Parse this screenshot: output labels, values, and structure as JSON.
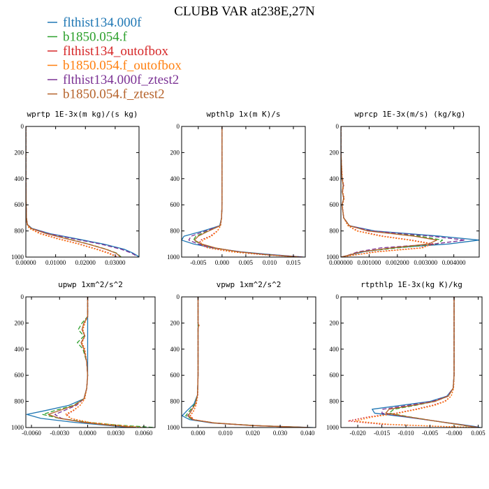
{
  "title": "CLUBB VAR at238E,27N",
  "legend": [
    {
      "label": "flthist134.000f",
      "color": "#1f77b4",
      "dash": "solid"
    },
    {
      "label": "b1850.054.f",
      "color": "#2ca02c",
      "dash": "dashed"
    },
    {
      "label": "flthist134_outofbox",
      "color": "#d62728",
      "dash": "dotted"
    },
    {
      "label": "b1850.054.f_outofbox",
      "color": "#ff7f0e",
      "dash": "dotted"
    },
    {
      "label": "flthist134.000f_ztest2",
      "color": "#7b3294",
      "dash": "dashed"
    },
    {
      "label": "b1850.054.f_ztest2",
      "color": "#b5622a",
      "dash": "solid"
    }
  ],
  "chart_data": [
    {
      "type": "line",
      "title": "wprtp  1E-3x(m kg)/(s kg)",
      "xlim": [
        0,
        0.038
      ],
      "ylim": [
        1000,
        0
      ],
      "y_inverted": true,
      "x_ticks": [
        0,
        0.01,
        0.02,
        0.03
      ],
      "x_tick_labels": [
        "0.00000",
        "0.01000",
        "0.02000",
        "0.03000"
      ],
      "y_ticks": [
        0,
        200,
        400,
        600,
        800,
        1000
      ],
      "y_tick_labels": [
        "0",
        "200",
        "400",
        "600",
        "800",
        "1000"
      ],
      "y": [
        0,
        200,
        400,
        600,
        700,
        750,
        780,
        820,
        860,
        900,
        940,
        970,
        990,
        1000
      ],
      "series": [
        {
          "name": "flthist134.000f",
          "x": [
            0,
            0,
            0,
            0.0001,
            0.0002,
            0.0005,
            0.002,
            0.008,
            0.017,
            0.026,
            0.033,
            0.036,
            0.0375,
            0.038
          ]
        },
        {
          "name": "b1850.054.f",
          "x": [
            0,
            0,
            0,
            0.0001,
            0.0002,
            0.0005,
            0.0018,
            0.007,
            0.014,
            0.021,
            0.027,
            0.0305,
            0.0315,
            0.032
          ]
        },
        {
          "name": "flthist134_outofbox",
          "x": [
            0,
            0,
            0,
            0.0001,
            0.0002,
            0.0004,
            0.0012,
            0.005,
            0.011,
            0.018,
            0.024,
            0.028,
            0.03,
            0.0308
          ]
        },
        {
          "name": "b1850.054.f_outofbox",
          "x": [
            0,
            0,
            0,
            0.0001,
            0.0002,
            0.0004,
            0.0011,
            0.0045,
            0.0105,
            0.0175,
            0.0235,
            0.0275,
            0.0295,
            0.03
          ]
        },
        {
          "name": "flthist134.000f_ztest2",
          "x": [
            0,
            0,
            0,
            0.0001,
            0.0002,
            0.0005,
            0.0018,
            0.0075,
            0.016,
            0.025,
            0.032,
            0.0355,
            0.037,
            0.0375
          ]
        },
        {
          "name": "b1850.054.f_ztest2",
          "x": [
            0,
            0,
            0,
            0.0001,
            0.0002,
            0.0005,
            0.0017,
            0.0068,
            0.0138,
            0.0208,
            0.0268,
            0.0303,
            0.0313,
            0.0318
          ]
        }
      ]
    },
    {
      "type": "line",
      "title": "wpthlp  1x(m K)/s",
      "xlim": [
        -0.0085,
        0.0175
      ],
      "ylim": [
        1000,
        0
      ],
      "y_inverted": true,
      "x_ticks": [
        -0.005,
        0,
        0.005,
        0.01,
        0.015
      ],
      "x_tick_labels": [
        "-0.005",
        "0.000",
        "0.005",
        "0.010",
        "0.015"
      ],
      "y_ticks": [
        0,
        200,
        400,
        600,
        800,
        1000
      ],
      "y_tick_labels": [
        "0",
        "200",
        "400",
        "600",
        "800",
        "1000"
      ],
      "y": [
        0,
        200,
        400,
        600,
        700,
        760,
        800,
        840,
        870,
        900,
        930,
        960,
        980,
        1000
      ],
      "series": [
        {
          "name": "flthist134.000f",
          "x": [
            0,
            0,
            0,
            0,
            -0.0001,
            -0.0005,
            -0.004,
            -0.008,
            -0.0085,
            -0.006,
            -0.002,
            0.004,
            0.01,
            0.0172
          ]
        },
        {
          "name": "b1850.054.f",
          "x": [
            0,
            0,
            0,
            0,
            -0.0001,
            -0.0004,
            -0.003,
            -0.0055,
            -0.006,
            -0.0045,
            -0.0015,
            0.0035,
            0.009,
            0.0165
          ]
        },
        {
          "name": "flthist134_outofbox",
          "x": [
            0,
            0,
            0,
            0,
            -0.0001,
            -0.0003,
            -0.001,
            -0.0025,
            -0.0045,
            -0.0048,
            -0.003,
            0.002,
            0.008,
            0.0168
          ]
        },
        {
          "name": "b1850.054.f_outofbox",
          "x": [
            0,
            0,
            0,
            0,
            -0.0001,
            -0.0003,
            -0.0009,
            -0.0022,
            -0.004,
            -0.0045,
            -0.0028,
            0.0022,
            0.0085,
            0.017
          ]
        },
        {
          "name": "flthist134.000f_ztest2",
          "x": [
            0,
            0,
            0,
            0,
            -0.0001,
            -0.0004,
            -0.0035,
            -0.0065,
            -0.007,
            -0.005,
            -0.0018,
            0.0038,
            0.0095,
            0.017
          ]
        },
        {
          "name": "b1850.054.f_ztest2",
          "x": [
            0,
            0,
            0,
            0,
            -0.0001,
            -0.0004,
            -0.0028,
            -0.005,
            -0.0058,
            -0.0043,
            -0.0014,
            0.0034,
            0.0088,
            0.0163
          ]
        }
      ]
    },
    {
      "type": "line",
      "title": "wprcp  1E-3x(m/s) (kg/kg)",
      "xlim": [
        0,
        0.0049
      ],
      "ylim": [
        1000,
        0
      ],
      "y_inverted": true,
      "x_ticks": [
        0,
        0.001,
        0.002,
        0.003,
        0.004
      ],
      "x_tick_labels": [
        "0.000000",
        "0.001000",
        "0.002000",
        "0.003000",
        "0.004000"
      ],
      "y_ticks": [
        0,
        200,
        400,
        600,
        800,
        1000
      ],
      "y_tick_labels": [
        "0",
        "200",
        "400",
        "600",
        "800",
        "1000"
      ],
      "y": [
        0,
        200,
        400,
        450,
        500,
        550,
        600,
        700,
        760,
        800,
        840,
        870,
        900,
        930,
        960,
        990,
        1000
      ],
      "series": [
        {
          "name": "flthist134.000f",
          "x": [
            0,
            0,
            4e-05,
            9e-05,
            5e-05,
            0.0001,
            4e-05,
            0.0001,
            0.0003,
            0.0012,
            0.0035,
            0.0049,
            0.0038,
            0.0018,
            0.0008,
            0.0002,
            0
          ]
        },
        {
          "name": "b1850.054.f",
          "x": [
            0,
            0,
            4e-05,
            8e-05,
            5e-05,
            0.0001,
            4e-05,
            0.0001,
            0.0003,
            0.001,
            0.0028,
            0.0036,
            0.0034,
            0.002,
            0.0007,
            0.0002,
            0
          ]
        },
        {
          "name": "flthist134_outofbox",
          "x": [
            0,
            0,
            5e-05,
            0.0001,
            6e-05,
            0.00012,
            5e-05,
            0.0001,
            0.00025,
            0.0006,
            0.0015,
            0.0025,
            0.0033,
            0.0028,
            0.0012,
            0.0003,
            0
          ]
        },
        {
          "name": "b1850.054.f_outofbox",
          "x": [
            0,
            0,
            5e-05,
            0.0001,
            6e-05,
            0.00012,
            5e-05,
            0.0001,
            0.00025,
            0.00055,
            0.0014,
            0.0024,
            0.0032,
            0.0029,
            0.0013,
            0.0003,
            0
          ]
        },
        {
          "name": "flthist134.000f_ztest2",
          "x": [
            0,
            0,
            4e-05,
            9e-05,
            5e-05,
            0.0001,
            4e-05,
            0.0001,
            0.0003,
            0.0011,
            0.0032,
            0.0044,
            0.0033,
            0.0014,
            0.0006,
            0.0002,
            0
          ]
        },
        {
          "name": "b1850.054.f_ztest2",
          "x": [
            0,
            0,
            4e-05,
            8e-05,
            5e-05,
            0.0001,
            4e-05,
            0.0001,
            0.0003,
            0.00095,
            0.0026,
            0.0034,
            0.0031,
            0.0018,
            0.0007,
            0.0002,
            0
          ]
        }
      ]
    },
    {
      "type": "line",
      "title": "upwp  1xm^2/s^2",
      "xlim": [
        -0.0066,
        0.0072
      ],
      "ylim": [
        1000,
        0
      ],
      "y_inverted": true,
      "x_ticks": [
        -0.006,
        -0.003,
        0,
        0.003,
        0.006
      ],
      "x_tick_labels": [
        "-0.0060",
        "-0.0030",
        "0.0000",
        "0.0030",
        "0.0060"
      ],
      "y_ticks": [
        0,
        200,
        400,
        600,
        800,
        1000
      ],
      "y_tick_labels": [
        "0",
        "200",
        "400",
        "600",
        "800",
        "1000"
      ],
      "y": [
        0,
        150,
        200,
        250,
        300,
        350,
        400,
        500,
        600,
        700,
        780,
        830,
        870,
        900,
        930,
        960,
        980,
        1000
      ],
      "series": [
        {
          "name": "flthist134.000f",
          "x": [
            0,
            0,
            0,
            0,
            0,
            0,
            0,
            0,
            0,
            -0.0001,
            -0.0004,
            -0.002,
            -0.0045,
            -0.0065,
            -0.005,
            -0.0015,
            0.0015,
            0.0045
          ]
        },
        {
          "name": "b1850.054.f",
          "x": [
            0,
            0,
            -0.0006,
            -0.001,
            -0.0004,
            -0.0011,
            -0.0005,
            -0.0001,
            0,
            -0.0001,
            -0.0004,
            -0.0015,
            -0.0035,
            -0.0048,
            -0.003,
            0,
            0.003,
            0.0072
          ]
        },
        {
          "name": "flthist134_outofbox",
          "x": [
            0,
            0,
            -0.0003,
            -0.0005,
            -0.0003,
            -0.0006,
            -0.0003,
            -0.0001,
            0,
            -0.0001,
            -0.0003,
            -0.0008,
            -0.0015,
            -0.0022,
            -0.0018,
            0,
            0.0025,
            0.0055
          ]
        },
        {
          "name": "b1850.054.f_outofbox",
          "x": [
            0,
            0,
            -0.0003,
            -0.0005,
            -0.0003,
            -0.0006,
            -0.0003,
            -0.0001,
            0,
            -0.0001,
            -0.0003,
            -0.0008,
            -0.0016,
            -0.0024,
            -0.0018,
            0.0002,
            0.003,
            0.006
          ]
        },
        {
          "name": "flthist134.000f_ztest2",
          "x": [
            0,
            0,
            -0.0004,
            -0.0006,
            -0.0003,
            -0.0007,
            -0.0004,
            -0.0001,
            0,
            -0.0001,
            -0.0004,
            -0.0012,
            -0.0025,
            -0.0035,
            -0.0028,
            -0.0005,
            0.002,
            0.005
          ]
        },
        {
          "name": "b1850.054.f_ztest2",
          "x": [
            0,
            0,
            -0.0004,
            -0.0006,
            -0.0003,
            -0.0007,
            -0.0004,
            -0.0001,
            0,
            -0.0001,
            -0.0004,
            -0.0014,
            -0.003,
            -0.0042,
            -0.003,
            -0.0005,
            0.002,
            0.0052
          ]
        }
      ]
    },
    {
      "type": "line",
      "title": "vpwp  1xm^2/s^2",
      "xlim": [
        -0.006,
        0.043
      ],
      "ylim": [
        1000,
        0
      ],
      "y_inverted": true,
      "x_ticks": [
        0,
        0.01,
        0.02,
        0.03,
        0.04
      ],
      "x_tick_labels": [
        "0.000",
        "0.010",
        "0.020",
        "0.030",
        "0.040"
      ],
      "y_ticks": [
        0,
        200,
        400,
        600,
        800,
        1000
      ],
      "y_tick_labels": [
        "0",
        "200",
        "400",
        "600",
        "800",
        "1000"
      ],
      "y": [
        0,
        200,
        220,
        240,
        400,
        600,
        750,
        820,
        870,
        910,
        940,
        965,
        985,
        1000
      ],
      "series": [
        {
          "name": "flthist134.000f",
          "x": [
            0,
            0,
            0,
            0,
            0,
            0,
            -0.0002,
            -0.0015,
            -0.004,
            -0.0058,
            -0.003,
            0.005,
            0.02,
            0.042
          ]
        },
        {
          "name": "b1850.054.f",
          "x": [
            0,
            0,
            0,
            0,
            0,
            0,
            -0.0002,
            -0.0012,
            -0.003,
            -0.0045,
            -0.002,
            0.006,
            0.021,
            0.04
          ]
        },
        {
          "name": "flthist134_outofbox",
          "x": [
            0,
            0,
            0.0004,
            0,
            0,
            0,
            -0.0001,
            -0.0006,
            -0.0015,
            -0.0028,
            -0.0015,
            0.006,
            0.02,
            0.04
          ]
        },
        {
          "name": "b1850.054.f_outofbox",
          "x": [
            0,
            0,
            0.0004,
            0,
            0,
            0,
            -0.0001,
            -0.0006,
            -0.0016,
            -0.003,
            -0.0016,
            0.0058,
            0.0195,
            0.0395
          ]
        },
        {
          "name": "flthist134.000f_ztest2",
          "x": [
            0,
            0,
            0.0002,
            0,
            0,
            0,
            -0.0002,
            -0.001,
            -0.0025,
            -0.0038,
            -0.002,
            0.0055,
            0.02,
            0.0405
          ]
        },
        {
          "name": "b1850.054.f_ztest2",
          "x": [
            0,
            0,
            0.0002,
            0,
            0,
            0,
            -0.0002,
            -0.001,
            -0.0024,
            -0.0036,
            -0.0018,
            0.0058,
            0.0205,
            0.041
          ]
        }
      ]
    },
    {
      "type": "line",
      "title": "rtpthlp  1E-3x(kg K)/kg",
      "xlim": [
        -0.0235,
        0.0058
      ],
      "ylim": [
        1000,
        0
      ],
      "y_inverted": true,
      "x_ticks": [
        -0.02,
        -0.015,
        -0.01,
        -0.005,
        0,
        0.005
      ],
      "x_tick_labels": [
        "-0.020",
        "-0.015",
        "-0.010",
        "-0.005",
        "-0.000",
        "0.005"
      ],
      "y_ticks": [
        0,
        200,
        400,
        600,
        800,
        1000
      ],
      "y_tick_labels": [
        "0",
        "200",
        "400",
        "600",
        "800",
        "1000"
      ],
      "y": [
        0,
        200,
        400,
        500,
        600,
        700,
        760,
        800,
        830,
        860,
        890,
        920,
        950,
        975,
        990,
        1000
      ],
      "series": [
        {
          "name": "flthist134.000f",
          "x": [
            0,
            0,
            0,
            0,
            0,
            -0.0002,
            -0.0015,
            -0.005,
            -0.011,
            -0.017,
            -0.0165,
            -0.01,
            -0.004,
            0.001,
            0.004,
            0.0055
          ]
        },
        {
          "name": "b1850.054.f",
          "x": [
            0,
            0,
            0,
            0,
            0,
            -0.0002,
            -0.0012,
            -0.004,
            -0.008,
            -0.0125,
            -0.0135,
            -0.009,
            -0.004,
            0.0005,
            0.003,
            0.005
          ]
        },
        {
          "name": "flthist134_outofbox",
          "x": [
            0,
            0,
            0,
            0,
            0,
            -0.0001,
            -0.0006,
            -0.002,
            -0.0045,
            -0.008,
            -0.012,
            -0.018,
            -0.022,
            -0.015,
            -0.004,
            0.005
          ]
        },
        {
          "name": "b1850.054.f_outofbox",
          "x": [
            0,
            0,
            0,
            0,
            0,
            -0.0001,
            -0.0006,
            -0.0018,
            -0.004,
            -0.0075,
            -0.0115,
            -0.017,
            -0.0205,
            -0.0135,
            -0.0035,
            0.0048
          ]
        },
        {
          "name": "flthist134.000f_ztest2",
          "x": [
            0,
            0,
            0,
            0,
            0,
            -0.0002,
            -0.0014,
            -0.0045,
            -0.0095,
            -0.0148,
            -0.015,
            -0.0095,
            -0.004,
            0.0008,
            0.0035,
            0.0052
          ]
        },
        {
          "name": "b1850.054.f_ztest2",
          "x": [
            0,
            0,
            0,
            0,
            0,
            -0.0002,
            -0.0012,
            -0.004,
            -0.0085,
            -0.0135,
            -0.0142,
            -0.0092,
            -0.004,
            0.0006,
            0.0032,
            0.005
          ]
        }
      ]
    }
  ]
}
